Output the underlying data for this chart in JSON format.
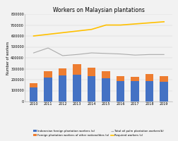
{
  "title": "Workers on Malaysian plantations",
  "years": [
    2010,
    2011,
    2012,
    2013,
    2014,
    2015,
    2016,
    2017,
    2018,
    2019
  ],
  "indonesian_workers": [
    130000,
    220000,
    240000,
    245000,
    235000,
    215000,
    190000,
    185000,
    190000,
    180000
  ],
  "other_foreign_workers": [
    40000,
    60000,
    60000,
    100000,
    75000,
    60000,
    45000,
    40000,
    60000,
    50000
  ],
  "total_palm_workers": [
    445000,
    490000,
    420000,
    430000,
    445000,
    440000,
    435000,
    425000,
    430000,
    430000
  ],
  "required_workers": [
    600000,
    615000,
    630000,
    645000,
    660000,
    700000,
    700000,
    710000,
    720000,
    730000
  ],
  "ylim": [
    0,
    800000
  ],
  "yticks": [
    0,
    100000,
    200000,
    300000,
    400000,
    500000,
    600000,
    700000,
    800000
  ],
  "ytick_labels": [
    "0",
    "100000",
    "200000",
    "300000",
    "400000",
    "500000",
    "600000",
    "700000",
    "800000"
  ],
  "bar_color_indonesian": "#4472C4",
  "bar_color_other": "#ED7D31",
  "line_color_total": "#ABABAB",
  "line_color_required": "#FFC000",
  "legend_labels": [
    "Indonesian foreign plantation workers (a)",
    "Foreign plantation workers of other nationalities (a)",
    "Total oil palm plantation workers(b)",
    "Required workers (c)"
  ],
  "ylabel": "Number of workers",
  "background_color": "#F2F2F2"
}
